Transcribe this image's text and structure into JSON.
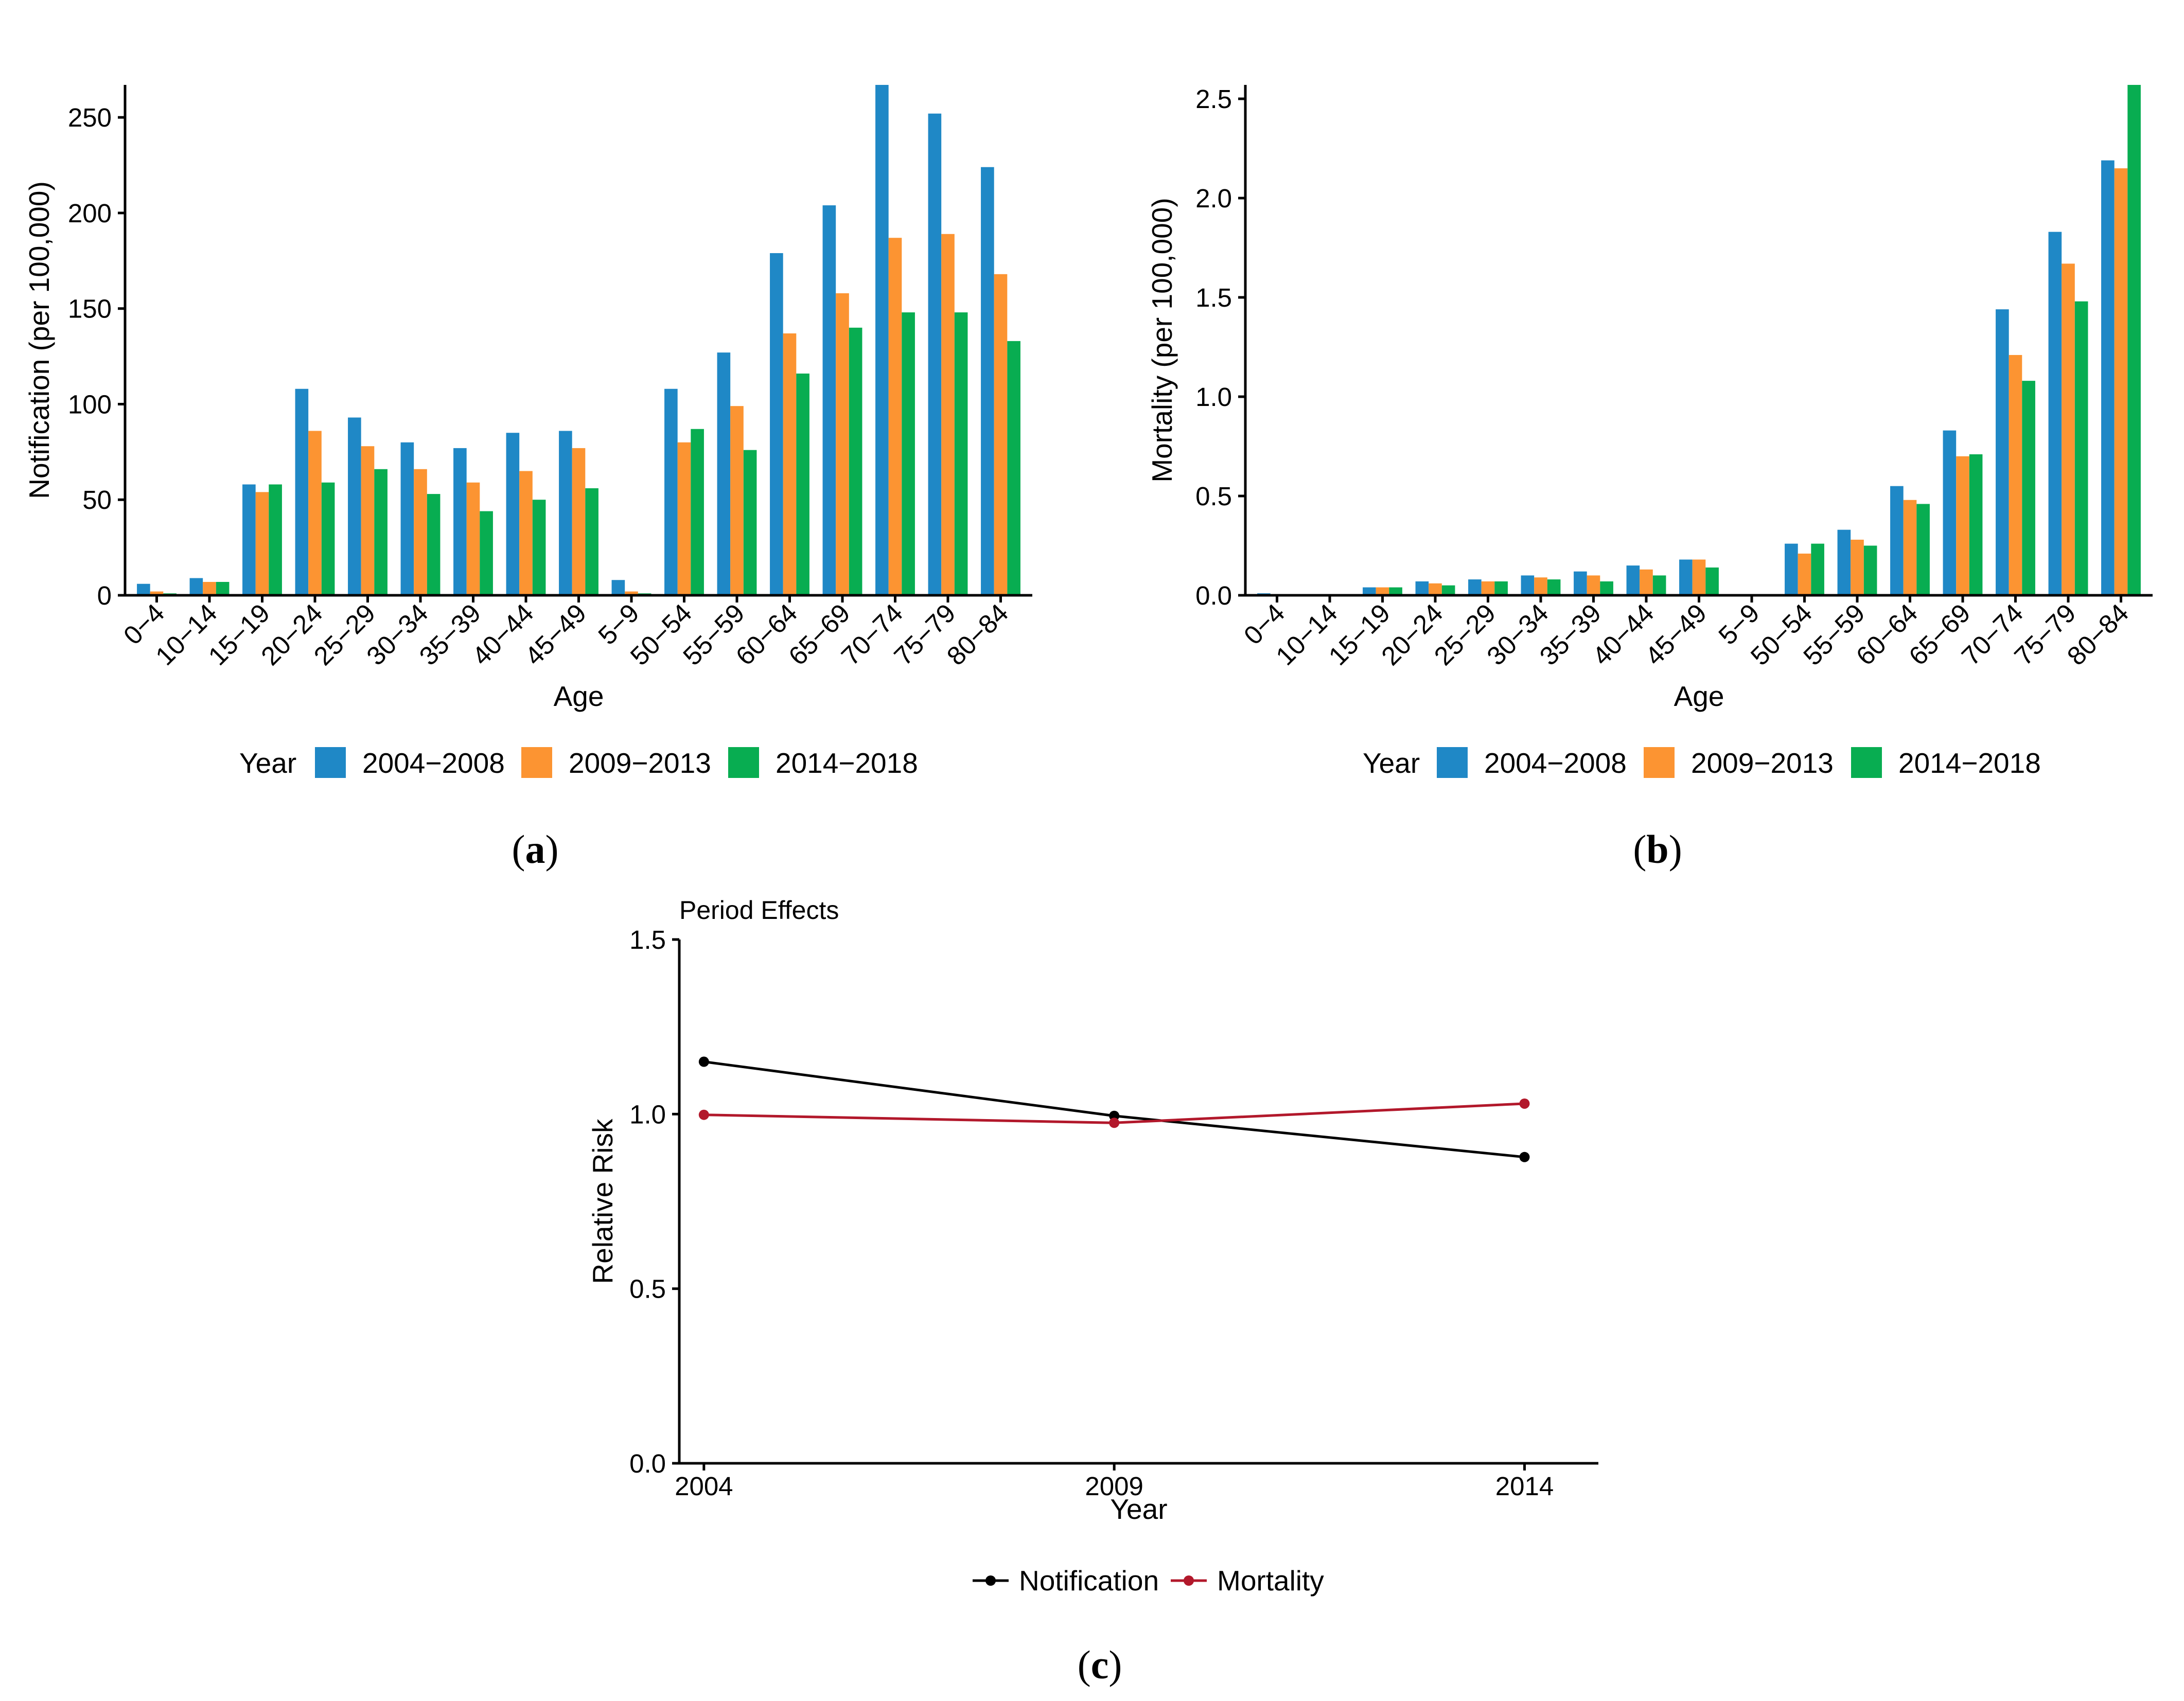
{
  "figure": {
    "panel_labels": [
      {
        "open": "(",
        "letter": "a",
        "close": ")"
      },
      {
        "open": "(",
        "letter": "b",
        "close": ")"
      },
      {
        "open": "(",
        "letter": "c",
        "close": ")"
      }
    ]
  },
  "chart_data": [
    {
      "id": "a",
      "type": "bar",
      "title": "",
      "xlabel": "Age",
      "ylabel": "Notification (per 100,000)",
      "ylim": [
        0,
        267
      ],
      "yticks": [
        0,
        50,
        100,
        150,
        200,
        250
      ],
      "ytick_labels": [
        "0",
        "50",
        "100",
        "150",
        "200",
        "250"
      ],
      "grid": false,
      "legend": {
        "title": "Year",
        "position": "bottom"
      },
      "categories": [
        "0−4",
        "10−14",
        "15−19",
        "20−24",
        "25−29",
        "30−34",
        "35−39",
        "40−44",
        "45−49",
        "5−9",
        "50−54",
        "55−59",
        "60−64",
        "65−69",
        "70−74",
        "75−79",
        "80−84"
      ],
      "series": [
        {
          "name": "2004−2008",
          "color": "#1f88c6",
          "values": [
            6,
            9,
            58,
            108,
            93,
            80,
            77,
            85,
            86,
            8,
            108,
            127,
            179,
            204,
            267,
            252,
            224
          ]
        },
        {
          "name": "2009−2013",
          "color": "#fc9432",
          "values": [
            2,
            7,
            54,
            86,
            78,
            66,
            59,
            65,
            77,
            2,
            80,
            99,
            137,
            158,
            187,
            189,
            168
          ]
        },
        {
          "name": "2014−2018",
          "color": "#08ad51",
          "values": [
            1,
            7,
            58,
            59,
            66,
            53,
            44,
            50,
            56,
            1,
            87,
            76,
            116,
            140,
            148,
            148,
            133
          ]
        }
      ]
    },
    {
      "id": "b",
      "type": "bar",
      "title": "",
      "xlabel": "Age",
      "ylabel": "Mortality (per 100,000)",
      "ylim": [
        0,
        2.57
      ],
      "yticks": [
        0,
        0.5,
        1.0,
        1.5,
        2.0,
        2.5
      ],
      "ytick_labels": [
        "0.0",
        "0.5",
        "1.0",
        "1.5",
        "2.0",
        "2.5"
      ],
      "grid": false,
      "legend": {
        "title": "Year",
        "position": "bottom"
      },
      "categories": [
        "0−4",
        "10−14",
        "15−19",
        "20−24",
        "25−29",
        "30−34",
        "35−39",
        "40−44",
        "45−49",
        "5−9",
        "50−54",
        "55−59",
        "60−64",
        "65−69",
        "70−74",
        "75−79",
        "80−84"
      ],
      "series": [
        {
          "name": "2004−2008",
          "color": "#1f88c6",
          "values": [
            0.01,
            0.005,
            0.04,
            0.07,
            0.08,
            0.1,
            0.12,
            0.15,
            0.18,
            0,
            0.26,
            0.33,
            0.55,
            0.83,
            1.44,
            1.83,
            2.19
          ]
        },
        {
          "name": "2009−2013",
          "color": "#fc9432",
          "values": [
            0.005,
            0.005,
            0.04,
            0.06,
            0.07,
            0.09,
            0.1,
            0.13,
            0.18,
            0,
            0.21,
            0.28,
            0.48,
            0.7,
            1.21,
            1.67,
            2.15
          ]
        },
        {
          "name": "2014−2018",
          "color": "#08ad51",
          "values": [
            0,
            0.005,
            0.04,
            0.05,
            0.07,
            0.08,
            0.07,
            0.1,
            0.14,
            0,
            0.26,
            0.25,
            0.46,
            0.71,
            1.08,
            1.48,
            2.57
          ]
        }
      ]
    },
    {
      "id": "c",
      "type": "line",
      "title": "Period Effects",
      "xlabel": "Year",
      "ylabel": "Relative Risk",
      "ylim": [
        0,
        1.5
      ],
      "yticks": [
        0,
        0.5,
        1.0,
        1.5
      ],
      "ytick_labels": [
        "0.0",
        "0.5",
        "1.0",
        "1.5"
      ],
      "xlim": [
        2003.7,
        2014.9
      ],
      "x": [
        2004,
        2009,
        2014
      ],
      "xtick_labels": [
        "2004",
        "2009",
        "2014"
      ],
      "grid": false,
      "legend": {
        "title": "",
        "position": "bottom"
      },
      "series": [
        {
          "name": "Notification",
          "color": "#000000",
          "values": [
            1.15,
            0.995,
            0.877
          ]
        },
        {
          "name": "Mortality",
          "color": "#b2182b",
          "values": [
            0.998,
            0.975,
            1.03
          ]
        }
      ]
    }
  ]
}
